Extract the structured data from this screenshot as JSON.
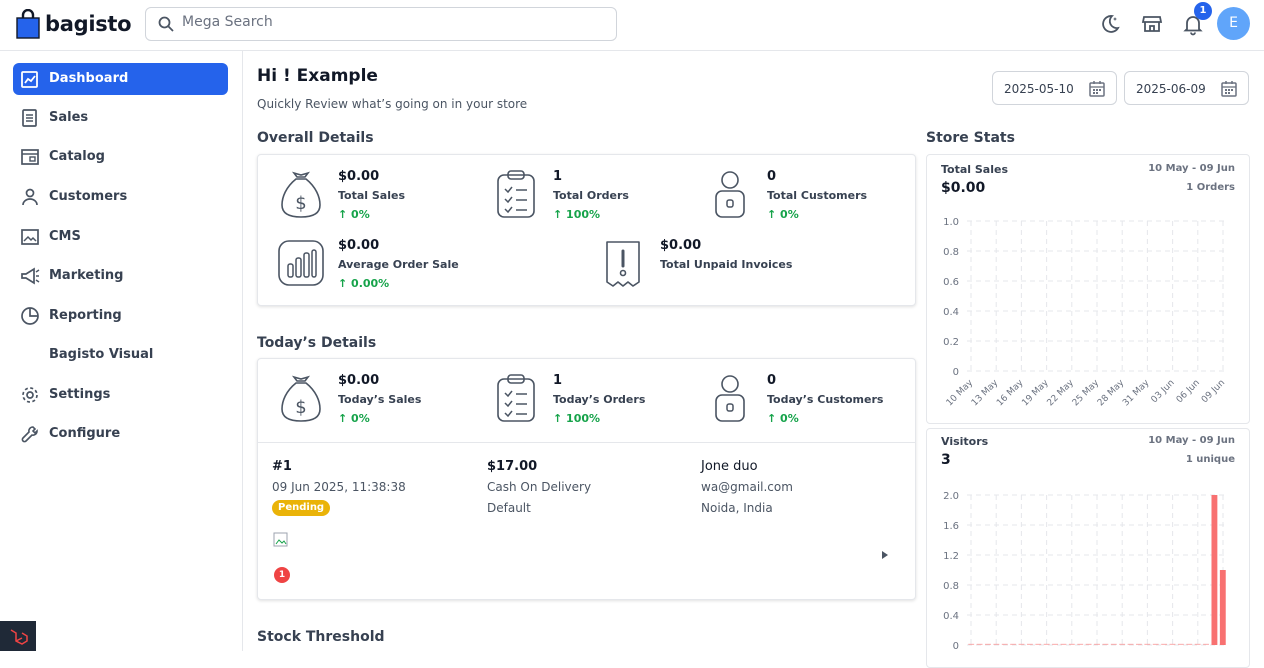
{
  "header": {
    "brand": "bagisto",
    "search_placeholder": "Mega Search",
    "notification_count": "1",
    "avatar_initial": "E"
  },
  "sidebar": {
    "items": [
      {
        "label": "Dashboard",
        "icon": "dashboard-icon",
        "active": true
      },
      {
        "label": "Sales",
        "icon": "sales-icon"
      },
      {
        "label": "Catalog",
        "icon": "catalog-icon"
      },
      {
        "label": "Customers",
        "icon": "customers-icon"
      },
      {
        "label": "CMS",
        "icon": "cms-icon"
      },
      {
        "label": "Marketing",
        "icon": "marketing-icon"
      },
      {
        "label": "Reporting",
        "icon": "reporting-icon"
      },
      {
        "label": "Bagisto Visual",
        "icon": ""
      },
      {
        "label": "Settings",
        "icon": "settings-icon"
      },
      {
        "label": "Configure",
        "icon": "configure-icon"
      }
    ]
  },
  "main": {
    "greeting": "Hi ! Example",
    "subtitle": "Quickly Review what’s going on in your store",
    "date_from": "2025-05-10",
    "date_to": "2025-06-09",
    "overall_title": "Overall Details",
    "overall": [
      {
        "value": "$0.00",
        "label": "Total Sales",
        "change": "↑ 0%",
        "icon": "money-bag-icon"
      },
      {
        "value": "1",
        "label": "Total Orders",
        "change": "↑ 100%",
        "icon": "clipboard-icon"
      },
      {
        "value": "0",
        "label": "Total Customers",
        "change": "↑ 0%",
        "icon": "customer-icon"
      },
      {
        "value": "$0.00",
        "label": "Average Order Sale",
        "change": "↑ 0.00%",
        "icon": "bar-chart-icon"
      },
      {
        "value": "$0.00",
        "label": "Total Unpaid Invoices",
        "change": "",
        "icon": "invoice-alert-icon"
      }
    ],
    "today_title": "Today’s Details",
    "today": [
      {
        "value": "$0.00",
        "label": "Today’s Sales",
        "change": "↑ 0%"
      },
      {
        "value": "1",
        "label": "Today’s Orders",
        "change": "↑ 100%"
      },
      {
        "value": "0",
        "label": "Today’s Customers",
        "change": "↑ 0%"
      }
    ],
    "order": {
      "id": "#1",
      "date": "09 Jun 2025, 11:38:38",
      "status": "Pending",
      "amount": "$17.00",
      "payment": "Cash On Delivery",
      "channel": "Default",
      "customer": "Jone duo",
      "email": "wa@gmail.com",
      "location": "Noida, India",
      "item_count": "1"
    },
    "stock_title": "Stock Threshold"
  },
  "store_stats": {
    "title": "Store Stats",
    "sales_label": "Total Sales",
    "sales_value": "$0.00",
    "sales_range": "10 May - 09 Jun",
    "sales_orders": "1 Orders",
    "visitors_label": "Visitors",
    "visitors_value": "3",
    "visitors_range": "10 May - 09 Jun",
    "visitors_unique": "1 unique"
  },
  "colors": {
    "accent": "#2563eb",
    "positive": "#16a34a",
    "pending": "#eab308",
    "bar": "#f87171"
  },
  "chart_data": [
    {
      "type": "line",
      "title": "Total Sales",
      "x": [
        "10 May",
        "13 May",
        "16 May",
        "19 May",
        "22 May",
        "25 May",
        "28 May",
        "31 May",
        "03 Jun",
        "06 Jun",
        "09 Jun"
      ],
      "y_ticks": [
        "0",
        "0.2",
        "0.4",
        "0.6",
        "0.8",
        "1.0"
      ],
      "ylim": [
        0,
        1.0
      ],
      "grid": true
    },
    {
      "type": "bar",
      "title": "Visitors",
      "y_ticks": [
        "0",
        "0.4",
        "0.8",
        "1.2",
        "1.6",
        "2.0"
      ],
      "ylim": [
        0,
        2.0
      ],
      "series_values": [
        0,
        0,
        0,
        0,
        0,
        0,
        0,
        0,
        0,
        0,
        0,
        0,
        0,
        0,
        0,
        0,
        0,
        0,
        0,
        0,
        0,
        0,
        0,
        0,
        0,
        0,
        0,
        0,
        0,
        2,
        1
      ],
      "grid": true
    }
  ]
}
